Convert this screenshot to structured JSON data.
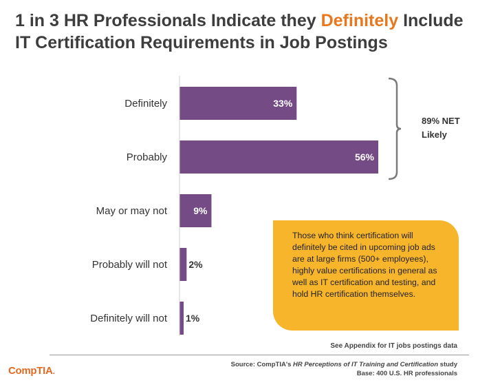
{
  "title": {
    "prefix": "1 in 3 HR Professionals Indicate they ",
    "highlight": "Definitely",
    "suffix_line1": " Include",
    "line2": "IT Certification Requirements in Job Postings"
  },
  "colors": {
    "bar": "#744b85",
    "highlight": "#e8781e",
    "callout": "#f7b52b",
    "logo": "#e06a22"
  },
  "chart_data": {
    "type": "bar",
    "orientation": "horizontal",
    "categories": [
      "Definitely",
      "Probably",
      "May or may not",
      "Probably will not",
      "Definitely will not"
    ],
    "values": [
      33,
      56,
      9,
      2,
      1
    ],
    "value_labels": [
      "33%",
      "56%",
      "9%",
      "2%",
      "1%"
    ],
    "xlim": [
      0,
      56
    ],
    "annotation": {
      "bracket_over": [
        "Definitely",
        "Probably"
      ],
      "line1": "89% NET",
      "line2": "Likely"
    }
  },
  "callout": {
    "text": "Those who think certification will definitely be cited in upcoming job ads are at large firms (500+ employees), highly value certifications in general as well as IT certification and testing, and hold HR certification themselves."
  },
  "appendix_note": "See Appendix for IT jobs postings data",
  "logo": {
    "text": "CompTIA",
    "dot": "."
  },
  "source": {
    "prefix": "Source: CompTIA's ",
    "study_name": "HR Perceptions of IT Training and Certification",
    "suffix": " study",
    "base": "Base: 400 U.S. HR professionals"
  }
}
